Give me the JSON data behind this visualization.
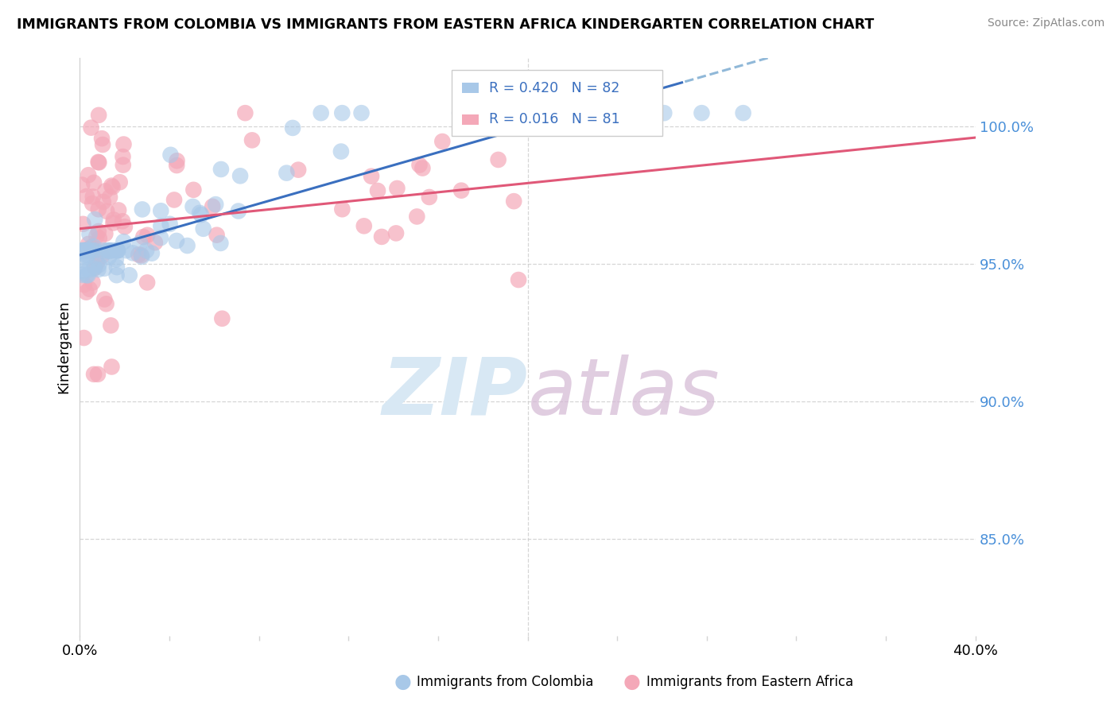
{
  "title": "IMMIGRANTS FROM COLOMBIA VS IMMIGRANTS FROM EASTERN AFRICA KINDERGARTEN CORRELATION CHART",
  "source": "Source: ZipAtlas.com",
  "ylabel": "Kindergarten",
  "colombia_R": 0.42,
  "colombia_N": 82,
  "eastern_africa_R": 0.016,
  "eastern_africa_N": 81,
  "colombia_color": "#A8C8E8",
  "colombia_edge_color": "#A8C8E8",
  "eastern_africa_color": "#F4A8B8",
  "eastern_africa_edge_color": "#F4A8B8",
  "colombia_line_color": "#3A6FBF",
  "eastern_africa_line_color": "#E05878",
  "colombia_dashed_color": "#90B8D8",
  "background_color": "#FFFFFF",
  "grid_color": "#CCCCCC",
  "watermark_color": "#D8E8F4",
  "y_tick_vals": [
    0.85,
    0.9,
    0.95,
    1.0
  ],
  "y_tick_labels": [
    "85.0%",
    "90.0%",
    "95.0%",
    "100.0%"
  ],
  "xlim": [
    0.0,
    0.4
  ],
  "ylim": [
    0.815,
    1.025
  ],
  "colombia_seed": 42,
  "eastern_seed": 123
}
